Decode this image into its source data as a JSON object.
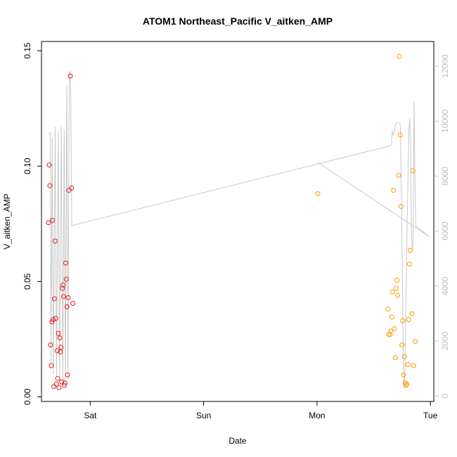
{
  "chart_data": {
    "type": "scatter",
    "title": "ATOM1 Northeast_Pacific V_aitken_AMP",
    "xlabel": "Date",
    "ylabel": "V_aitken_AMP",
    "x_ticks": [
      {
        "label": "Sat",
        "value": 0
      },
      {
        "label": "Sun",
        "value": 1
      },
      {
        "label": "Mon",
        "value": 2
      },
      {
        "label": "Tue",
        "value": 3
      }
    ],
    "y_ticks": [
      "0.00",
      "0.05",
      "0.10",
      "0.15"
    ],
    "y_right_ticks": [
      "0",
      "2000",
      "4000",
      "6000",
      "8000",
      "10000",
      "12000"
    ],
    "xlim": [
      -0.43,
      3.03
    ],
    "ylim": [
      -0.002,
      0.154
    ],
    "y_right_lim": [
      -200,
      12900
    ],
    "grid": false,
    "legend": "none",
    "colors": {
      "series_red": "#e41a1c",
      "series_orange": "#ff9900",
      "altitude_line": "#c8c8c8",
      "right_axis": "#bdbdbd"
    },
    "series": [
      {
        "color": "#e41a1c",
        "points": [
          {
            "x": -0.368,
            "y": 0.0755
          },
          {
            "x": -0.362,
            "y": 0.1005
          },
          {
            "x": -0.356,
            "y": 0.0915
          },
          {
            "x": -0.35,
            "y": 0.0225
          },
          {
            "x": -0.344,
            "y": 0.0135
          },
          {
            "x": -0.339,
            "y": 0.0325
          },
          {
            "x": -0.333,
            "y": 0.0765
          },
          {
            "x": -0.327,
            "y": 0.0335
          },
          {
            "x": -0.321,
            "y": 0.0045
          },
          {
            "x": -0.316,
            "y": 0.0425
          },
          {
            "x": -0.31,
            "y": 0.0675
          },
          {
            "x": -0.304,
            "y": 0.034
          },
          {
            "x": -0.298,
            "y": 0.0055
          },
          {
            "x": -0.292,
            "y": 0.02
          },
          {
            "x": -0.287,
            "y": 0.008
          },
          {
            "x": -0.281,
            "y": 0.0275
          },
          {
            "x": -0.275,
            "y": 0.004
          },
          {
            "x": -0.269,
            "y": 0.0255
          },
          {
            "x": -0.263,
            "y": 0.0195
          },
          {
            "x": -0.258,
            "y": 0.0215
          },
          {
            "x": -0.252,
            "y": 0.0065
          },
          {
            "x": -0.246,
            "y": 0.047
          },
          {
            "x": -0.24,
            "y": 0.0485
          },
          {
            "x": -0.235,
            "y": 0.0435
          },
          {
            "x": -0.229,
            "y": 0.005
          },
          {
            "x": -0.223,
            "y": 0.006
          },
          {
            "x": -0.217,
            "y": 0.058
          },
          {
            "x": -0.211,
            "y": 0.051
          },
          {
            "x": -0.205,
            "y": 0.039
          },
          {
            "x": -0.2,
            "y": 0.0095
          },
          {
            "x": -0.194,
            "y": 0.043
          },
          {
            "x": -0.188,
            "y": 0.0895
          },
          {
            "x": -0.176,
            "y": 0.139
          },
          {
            "x": -0.165,
            "y": 0.0905
          },
          {
            "x": -0.153,
            "y": 0.0405
          }
        ]
      },
      {
        "color": "#ff9900",
        "points": [
          {
            "x": 2.007,
            "y": 0.088
          },
          {
            "x": 2.625,
            "y": 0.038
          },
          {
            "x": 2.632,
            "y": 0.027
          },
          {
            "x": 2.645,
            "y": 0.027
          },
          {
            "x": 2.652,
            "y": 0.0285
          },
          {
            "x": 2.66,
            "y": 0.0345
          },
          {
            "x": 2.667,
            "y": 0.0455
          },
          {
            "x": 2.675,
            "y": 0.0895
          },
          {
            "x": 2.682,
            "y": 0.0295
          },
          {
            "x": 2.69,
            "y": 0.017
          },
          {
            "x": 2.697,
            "y": 0.047
          },
          {
            "x": 2.705,
            "y": 0.0505
          },
          {
            "x": 2.712,
            "y": 0.044
          },
          {
            "x": 2.719,
            "y": 0.096
          },
          {
            "x": 2.727,
            "y": 0.1475
          },
          {
            "x": 2.734,
            "y": 0.1135
          },
          {
            "x": 2.741,
            "y": 0.0825
          },
          {
            "x": 2.749,
            "y": 0.0225
          },
          {
            "x": 2.756,
            "y": 0.033
          },
          {
            "x": 2.763,
            "y": 0.0095
          },
          {
            "x": 2.771,
            "y": 0.0175
          },
          {
            "x": 2.779,
            "y": 0.006
          },
          {
            "x": 2.786,
            "y": 0.005
          },
          {
            "x": 2.793,
            "y": 0.0055
          },
          {
            "x": 2.801,
            "y": 0.014
          },
          {
            "x": 2.808,
            "y": 0.0335
          },
          {
            "x": 2.816,
            "y": 0.0575
          },
          {
            "x": 2.823,
            "y": 0.0635
          },
          {
            "x": 2.838,
            "y": 0.036
          },
          {
            "x": 2.845,
            "y": 0.098
          },
          {
            "x": 2.852,
            "y": 0.0135
          },
          {
            "x": 2.867,
            "y": 0.024
          }
        ]
      }
    ],
    "altitude_line": {
      "color": "#c8c8c8",
      "points": [
        [
          -0.358,
          9500
        ],
        [
          -0.352,
          9600
        ],
        [
          -0.346,
          1200
        ],
        [
          -0.335,
          9400
        ],
        [
          -0.325,
          800
        ],
        [
          -0.309,
          9800
        ],
        [
          -0.297,
          700
        ],
        [
          -0.282,
          9600
        ],
        [
          -0.271,
          500
        ],
        [
          -0.256,
          9800
        ],
        [
          -0.242,
          400
        ],
        [
          -0.23,
          9700
        ],
        [
          -0.219,
          500
        ],
        [
          -0.207,
          11300
        ],
        [
          -0.196,
          600
        ],
        [
          -0.185,
          11800
        ],
        [
          -0.174,
          11800
        ],
        [
          -0.163,
          6200
        ],
        [
          2.643,
          9100
        ],
        [
          2.657,
          9200
        ],
        [
          2.662,
          9650
        ],
        [
          2.669,
          9500
        ],
        [
          2.678,
          9550
        ],
        [
          2.693,
          9900
        ],
        [
          2.703,
          9950
        ],
        [
          2.716,
          9950
        ],
        [
          2.728,
          9900
        ],
        [
          2.734,
          9850
        ],
        [
          2.74,
          8600
        ],
        [
          2.748,
          6100
        ],
        [
          2.756,
          3200
        ],
        [
          2.76,
          1200
        ],
        [
          2.766,
          250
        ],
        [
          2.774,
          700
        ],
        [
          2.781,
          2500
        ],
        [
          2.788,
          4500
        ],
        [
          2.795,
          6400
        ],
        [
          2.803,
          8000
        ],
        [
          2.81,
          9600
        ],
        [
          2.817,
          10100
        ],
        [
          2.825,
          9200
        ],
        [
          2.833,
          5800
        ],
        [
          2.841,
          5300
        ],
        [
          2.848,
          5800
        ],
        [
          2.856,
          10700
        ],
        [
          2.863,
          8300
        ],
        [
          2.87,
          6200
        ],
        [
          2.99,
          5800
        ],
        [
          2.007,
          8500
        ]
      ]
    }
  }
}
